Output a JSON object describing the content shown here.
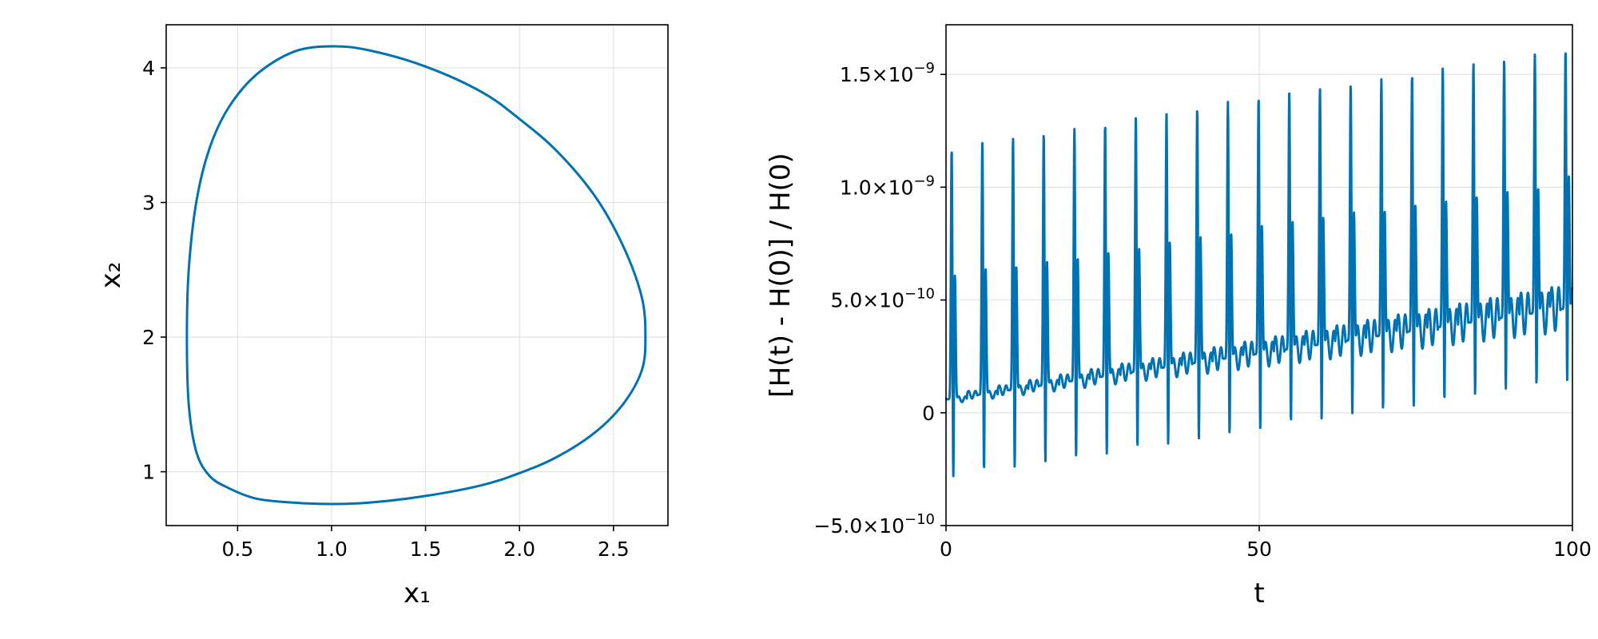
{
  "chart_data": [
    {
      "type": "line",
      "title": "",
      "xlabel": "x₁",
      "ylabel": "x₂",
      "xlim": [
        0.12,
        2.79
      ],
      "ylim": [
        0.6,
        4.32
      ],
      "xticks": [
        0.5,
        1.0,
        1.5,
        2.0,
        2.5
      ],
      "xtick_labels": [
        "0.5",
        "1.0",
        "1.5",
        "2.0",
        "2.5"
      ],
      "yticks": [
        1,
        2,
        3,
        4
      ],
      "ytick_labels": [
        "1",
        "2",
        "3",
        "4"
      ],
      "grid": true,
      "color": "#0072b2",
      "series": [
        {
          "closed": true,
          "x": [
            1.0,
            1.2,
            1.5,
            1.8,
            2.0,
            2.2,
            2.4,
            2.55,
            2.65,
            2.67,
            2.65,
            2.55,
            2.4,
            2.2,
            2.0,
            1.8,
            1.5,
            1.2,
            1.0,
            0.8,
            0.6,
            0.45,
            0.35,
            0.28,
            0.24,
            0.23,
            0.24,
            0.28,
            0.35,
            0.45,
            0.6,
            0.8
          ],
          "y": [
            0.76,
            0.77,
            0.82,
            0.9,
            0.99,
            1.11,
            1.29,
            1.5,
            1.75,
            2.0,
            2.3,
            2.68,
            3.05,
            3.38,
            3.62,
            3.82,
            4.01,
            4.13,
            4.16,
            4.12,
            3.95,
            3.7,
            3.4,
            3.0,
            2.5,
            2.0,
            1.5,
            1.15,
            0.97,
            0.88,
            0.8,
            0.77
          ]
        }
      ]
    },
    {
      "type": "line",
      "title": "",
      "xlabel": "t",
      "ylabel": "[H(t) - H(0)] / H(0)",
      "xlim": [
        0,
        100
      ],
      "ylim": [
        -5e-10,
        1.72e-09
      ],
      "xticks": [
        0,
        50,
        100
      ],
      "xtick_labels": [
        "0",
        "50",
        "100"
      ],
      "yticks": [
        -5e-10,
        0,
        5e-10,
        1e-09,
        1.5e-09
      ],
      "ytick_labels": [
        {
          "mant": "−5.0×10",
          "exp": "−10"
        },
        {
          "mant": "0",
          "exp": ""
        },
        {
          "mant": "5.0×10",
          "exp": "−10"
        },
        {
          "mant": "1.0×10",
          "exp": "−9"
        },
        {
          "mant": "1.5×10",
          "exp": "−9"
        }
      ],
      "grid": true,
      "color": "#0072b2",
      "period": 4.9,
      "series": [
        {
          "description_free": true,
          "peak_t": [
            0.9,
            5.8,
            10.7,
            15.6,
            20.5,
            25.4,
            30.3,
            35.2,
            40.1,
            45.0,
            49.9,
            54.8,
            59.7,
            64.6,
            69.5,
            74.4,
            79.3,
            84.2,
            89.1,
            94.0,
            98.9
          ],
          "peak_values": [
            1.17e-09,
            1.2e-09,
            1.22e-09,
            1.24e-09,
            1.26e-09,
            1.28e-09,
            1.31e-09,
            1.33e-09,
            1.35e-09,
            1.38e-09,
            1.4e-09,
            1.42e-09,
            1.44e-09,
            1.46e-09,
            1.48e-09,
            1.5e-09,
            1.53e-09,
            1.55e-09,
            1.57e-09,
            1.59e-09,
            1.61e-09
          ],
          "trough_values": [
            -4e-10,
            -3.8e-10,
            -3.6e-10,
            -3.4e-10,
            -3.2e-10,
            -3e-10,
            -2.8e-10,
            -2.6e-10,
            -2.4e-10,
            -2.2e-10,
            -1.9e-10,
            -1.7e-10,
            -1.5e-10,
            -1.3e-10,
            -1.1e-10,
            -9e-11,
            -7e-11,
            -4e-11,
            -2e-11,
            0.0,
            2e-11
          ],
          "second_peak_values": [
            6.1e-10,
            6.4e-10,
            6.5e-10,
            6.7e-10,
            6.9e-10,
            7.1e-10,
            7.3e-10,
            7.6e-10,
            7.8e-10,
            8e-10,
            8.3e-10,
            8.5e-10,
            8.7e-10,
            8.9e-10,
            9e-10,
            9.2e-10,
            9.4e-10,
            9.6e-10,
            9.8e-10,
            1e-09,
            1.05e-09
          ],
          "baseline_values": [
            6e-11,
            8e-11,
            1e-10,
            1.2e-10,
            1.4e-10,
            1.6e-10,
            1.8e-10,
            2e-10,
            2.2e-10,
            2.4e-10,
            2.6e-10,
            2.8e-10,
            3e-10,
            3.2e-10,
            3.4e-10,
            3.6e-10,
            3.8e-10,
            4e-10,
            4.2e-10,
            4.4e-10,
            4.6e-10
          ]
        }
      ]
    }
  ]
}
